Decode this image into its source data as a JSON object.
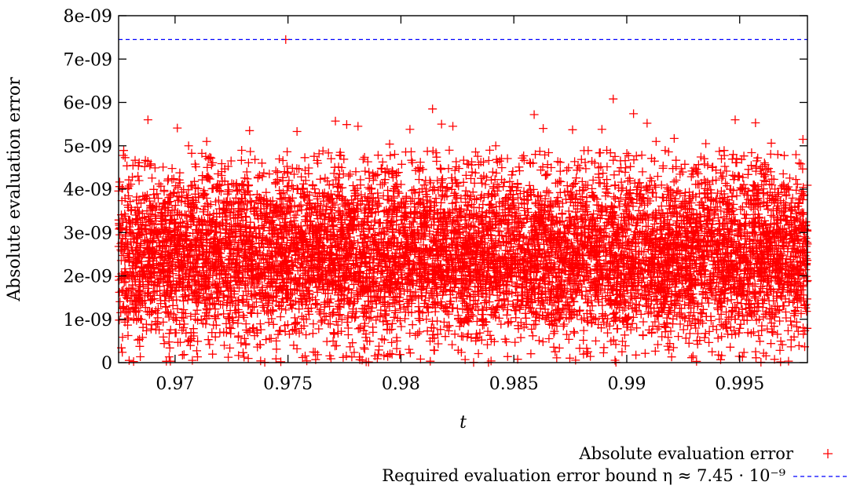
{
  "chart_data": {
    "type": "scatter",
    "title": "",
    "xlabel": "t",
    "ylabel": "Absolute evaluation error",
    "xlim": [
      0.9675,
      0.998
    ],
    "ylim": [
      0,
      8e-09
    ],
    "x_ticks": [
      {
        "value": 0.97,
        "label": "0.97"
      },
      {
        "value": 0.975,
        "label": "0.975"
      },
      {
        "value": 0.98,
        "label": "0.98"
      },
      {
        "value": 0.985,
        "label": "0.985"
      },
      {
        "value": 0.99,
        "label": "0.99"
      },
      {
        "value": 0.995,
        "label": "0.995"
      }
    ],
    "y_ticks": [
      {
        "value": 0,
        "label": "0"
      },
      {
        "value": 1e-09,
        "label": "1e-09"
      },
      {
        "value": 2e-09,
        "label": "2e-09"
      },
      {
        "value": 3e-09,
        "label": "3e-09"
      },
      {
        "value": 4e-09,
        "label": "4e-09"
      },
      {
        "value": 5e-09,
        "label": "5e-09"
      },
      {
        "value": 6e-09,
        "label": "6e-09"
      },
      {
        "value": 7e-09,
        "label": "7e-09"
      },
      {
        "value": 8e-09,
        "label": "8e-09"
      }
    ],
    "grid": false,
    "legend_position": "bottom-right",
    "series": [
      {
        "name": "Absolute evaluation error",
        "kind": "scatter",
        "marker": "plus",
        "color": "#ff0000",
        "points": [
          [
            0.9749,
            7.45e-09
          ],
          [
            0.9894,
            6.08e-09
          ],
          [
            0.9814,
            5.85e-09
          ],
          [
            0.9903,
            5.74e-09
          ],
          [
            0.9859,
            5.72e-09
          ],
          [
            0.9688,
            5.6e-09
          ],
          [
            0.9948,
            5.6e-09
          ],
          [
            0.9771,
            5.57e-09
          ],
          [
            0.9957,
            5.53e-09
          ],
          [
            0.9909,
            5.52e-09
          ],
          [
            0.9818,
            5.5e-09
          ],
          [
            0.9776,
            5.49e-09
          ],
          [
            0.9781,
            5.45e-09
          ],
          [
            0.9823,
            5.45e-09
          ],
          [
            0.9701,
            5.41e-09
          ],
          [
            0.9863,
            5.4e-09
          ],
          [
            0.9889,
            5.38e-09
          ],
          [
            0.9733,
            5.35e-09
          ],
          [
            0.9754,
            5.33e-09
          ],
          [
            0.9876,
            5.37e-09
          ],
          [
            0.9804,
            5.38e-09
          ],
          [
            0.9913,
            5.1e-09
          ],
          [
            0.9921,
            5.17e-09
          ],
          [
            0.9964,
            5.06e-09
          ],
          [
            0.9978,
            5.15e-09
          ],
          [
            0.9714,
            5.1e-09
          ],
          [
            0.9795,
            5.04e-09
          ],
          [
            0.9842,
            5e-09
          ],
          [
            0.9935,
            5.05e-09
          ],
          [
            0.9706,
            5e-09
          ]
        ],
        "bulk_band": {
          "count": 8200,
          "x_range": [
            0.9675,
            0.998
          ],
          "center": 2.5e-09,
          "spread": 1e-09,
          "min": 0,
          "max": 4.9e-09,
          "jitter": [
            [
              0.9676,
              2.6e-09
            ],
            [
              0.9685,
              2.2e-09
            ],
            [
              0.9701,
              3.4e-09
            ],
            [
              0.9719,
              1.1e-09
            ],
            [
              0.9736,
              2.9e-09
            ],
            [
              0.9752,
              1.6e-09
            ],
            [
              0.9768,
              3.8e-09
            ],
            [
              0.9785,
              5e-10
            ],
            [
              0.9802,
              2.4e-09
            ],
            [
              0.9818,
              4.2e-09
            ],
            [
              0.9835,
              1.9e-09
            ],
            [
              0.9851,
              3.1e-09
            ],
            [
              0.9867,
              9e-10
            ],
            [
              0.9884,
              2.7e-09
            ],
            [
              0.9901,
              3.6e-09
            ],
            [
              0.9917,
              1.4e-09
            ],
            [
              0.9934,
              2.3e-09
            ],
            [
              0.9951,
              4e-09
            ],
            [
              0.9967,
              1.2e-09
            ],
            [
              0.9979,
              2.8e-09
            ]
          ]
        }
      },
      {
        "name": "Required evaluation error bound η ≈ 7.45 · 10⁻⁹",
        "kind": "hline",
        "value": 7.45e-09,
        "color": "#0000ff",
        "dash": true
      }
    ]
  }
}
